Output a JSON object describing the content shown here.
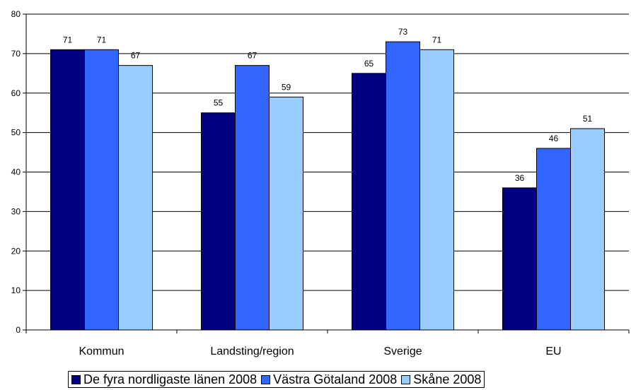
{
  "chart_data": {
    "type": "bar",
    "categories": [
      "Kommun",
      "Landsting/region",
      "Sverige",
      "EU"
    ],
    "series": [
      {
        "name": "De fyra nordligaste länen 2008",
        "color": "#000080",
        "values": [
          71,
          55,
          65,
          36
        ],
        "labels": [
          "71",
          "55",
          "65",
          "36"
        ]
      },
      {
        "name": "Västra Götaland 2008",
        "color": "#3366ff",
        "values": [
          71,
          67,
          73,
          46
        ],
        "labels": [
          "71",
          "67",
          "73",
          "46"
        ]
      },
      {
        "name": "Skåne 2008",
        "color": "#99ccff",
        "values": [
          67,
          59,
          71,
          51
        ],
        "labels": [
          "67",
          "59",
          "71",
          "51"
        ]
      }
    ],
    "ylim": [
      0,
      80
    ],
    "yticks": [
      "0",
      "10",
      "20",
      "30",
      "40",
      "50",
      "60",
      "70",
      "80"
    ],
    "grid": true,
    "legend_position": "bottom"
  }
}
